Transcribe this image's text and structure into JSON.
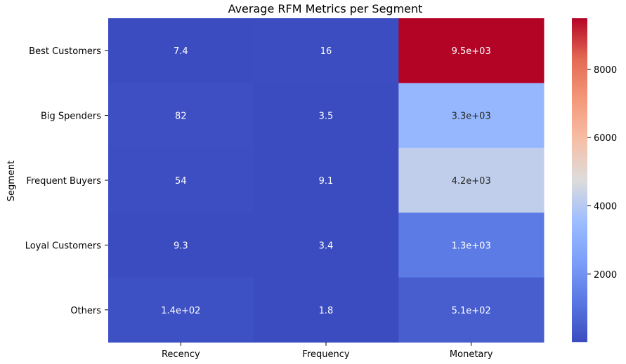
{
  "chart_data": {
    "type": "heatmap",
    "title": "Average RFM Metrics per Segment",
    "xlabel": "",
    "ylabel": "Segment",
    "columns": [
      "Recency",
      "Frequency",
      "Monetary"
    ],
    "rows": [
      "Best Customers",
      "Big Spenders",
      "Frequent Buyers",
      "Loyal Customers",
      "Others"
    ],
    "values": [
      [
        7.4,
        16,
        9500
      ],
      [
        82,
        3.5,
        3300
      ],
      [
        54,
        9.1,
        4200
      ],
      [
        9.3,
        3.4,
        1300
      ],
      [
        140,
        1.8,
        510
      ]
    ],
    "annotations": [
      [
        "7.4",
        "16",
        "9.5e+03"
      ],
      [
        "82",
        "3.5",
        "3.3e+03"
      ],
      [
        "54",
        "9.1",
        "4.2e+03"
      ],
      [
        "9.3",
        "3.4",
        "1.3e+03"
      ],
      [
        "1.4e+02",
        "1.8",
        "5.1e+02"
      ]
    ],
    "colormap": "coolwarm",
    "vmin": 1.8,
    "vmax": 9500,
    "colorbar_ticks": [
      2000,
      4000,
      6000,
      8000
    ],
    "colorbar_tick_labels": [
      "2000",
      "4000",
      "6000",
      "8000"
    ]
  }
}
